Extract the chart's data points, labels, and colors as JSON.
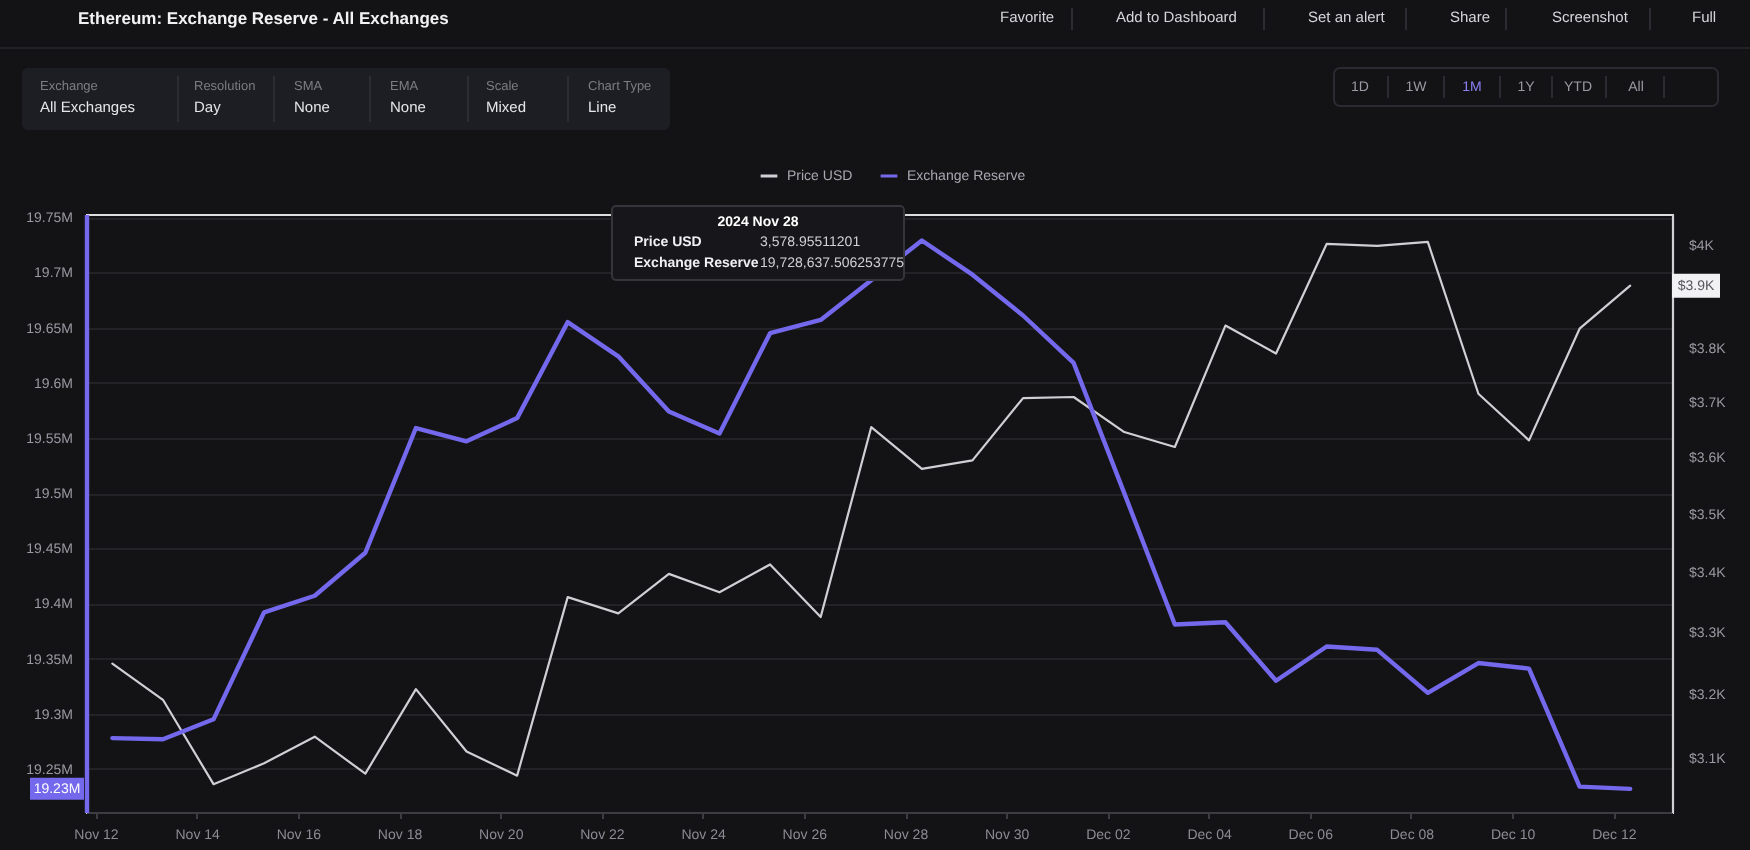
{
  "chart_data": {
    "type": "line",
    "title": "Ethereum: Exchange Reserve - All Exchanges",
    "x": [
      "2024-11-12T08:00",
      "2024-11-13T08:00",
      "2024-11-14T08:00",
      "2024-11-15T08:00",
      "2024-11-16T08:00",
      "2024-11-17T08:00",
      "2024-11-18T08:00",
      "2024-11-19T08:00",
      "2024-11-20T08:00",
      "2024-11-21T08:00",
      "2024-11-22T08:00",
      "2024-11-23T08:00",
      "2024-11-24T08:00",
      "2024-11-25T08:00",
      "2024-11-26T08:00",
      "2024-11-27T08:00",
      "2024-11-28T08:00",
      "2024-11-29T08:00",
      "2024-11-30T08:00",
      "2024-12-01T08:00",
      "2024-12-02T08:00",
      "2024-12-03T08:00",
      "2024-12-04T08:00",
      "2024-12-05T08:00",
      "2024-12-06T08:00",
      "2024-12-07T08:00",
      "2024-12-08T08:00",
      "2024-12-09T08:00",
      "2024-12-10T08:00",
      "2024-12-11T08:00",
      "2024-12-12T08:00"
    ],
    "series": [
      {
        "name": "Price USD",
        "color": "#cfcfd4",
        "axis": "y2",
        "values": [
          3249,
          3191,
          3060,
          3092,
          3133,
          3076,
          3208,
          3110,
          3073,
          3358,
          3331,
          3397,
          3366,
          3413,
          3325,
          3654,
          3578.95511201,
          3594,
          3707,
          3709,
          3645,
          3618,
          3843,
          3790,
          4002,
          3998,
          4006,
          3715,
          3630,
          3837,
          3920
        ]
      },
      {
        "name": "Exchange Reserve",
        "color": "#7468ec",
        "values": [
          19.278,
          19.277,
          19.295,
          19.392,
          19.407,
          19.446,
          19.559,
          19.547,
          19.568,
          19.655,
          19.624,
          19.574,
          19.554,
          19.645,
          19.657,
          null,
          19.729,
          19.698,
          19.661,
          19.618,
          19.5,
          19.381,
          19.383,
          19.33,
          19.361,
          19.358,
          19.319,
          19.346,
          19.341,
          19.234,
          19.232
        ]
      }
    ],
    "xlim": [
      "2024-11-11T19:30",
      "2024-12-13T03:50"
    ],
    "xticks": [
      {
        "value": "2024-11-12",
        "label": "Nov 12"
      },
      {
        "value": "2024-11-14",
        "label": "Nov 14"
      },
      {
        "value": "2024-11-16",
        "label": "Nov 16"
      },
      {
        "value": "2024-11-18",
        "label": "Nov 18"
      },
      {
        "value": "2024-11-20",
        "label": "Nov 20"
      },
      {
        "value": "2024-11-22",
        "label": "Nov 22"
      },
      {
        "value": "2024-11-24",
        "label": "Nov 24"
      },
      {
        "value": "2024-11-26",
        "label": "Nov 26"
      },
      {
        "value": "2024-11-28",
        "label": "Nov 28"
      },
      {
        "value": "2024-11-30",
        "label": "Nov 30"
      },
      {
        "value": "2024-12-02",
        "label": "Dec 02"
      },
      {
        "value": "2024-12-04",
        "label": "Dec 04"
      },
      {
        "value": "2024-12-06",
        "label": "Dec 06"
      },
      {
        "value": "2024-12-08",
        "label": "Dec 08"
      },
      {
        "value": "2024-12-10",
        "label": "Dec 10"
      },
      {
        "value": "2024-12-12",
        "label": "Dec 12"
      }
    ],
    "ylim": [
      19.211,
      19.753
    ],
    "yticks": [
      {
        "value": 19.25,
        "label": "19.25M"
      },
      {
        "value": 19.3,
        "label": "19.3M"
      },
      {
        "value": 19.35,
        "label": "19.35M"
      },
      {
        "value": 19.4,
        "label": "19.4M"
      },
      {
        "value": 19.45,
        "label": "19.45M"
      },
      {
        "value": 19.5,
        "label": "19.5M"
      },
      {
        "value": 19.55,
        "label": "19.55M"
      },
      {
        "value": 19.6,
        "label": "19.6M"
      },
      {
        "value": 19.65,
        "label": "19.65M"
      },
      {
        "value": 19.7,
        "label": "19.7M"
      },
      {
        "value": 19.75,
        "label": "19.75M"
      }
    ],
    "y2lim": [
      3018,
      4062
    ],
    "y2ticks": [
      {
        "value": 3100,
        "label": "$3.1K"
      },
      {
        "value": 3200,
        "label": "$3.2K"
      },
      {
        "value": 3300,
        "label": "$3.3K"
      },
      {
        "value": 3400,
        "label": "$3.4K"
      },
      {
        "value": 3500,
        "label": "$3.5K"
      },
      {
        "value": 3600,
        "label": "$3.6K"
      },
      {
        "value": 3700,
        "label": "$3.7K"
      },
      {
        "value": 3800,
        "label": "$3.8K"
      },
      {
        "value": 4000,
        "label": "$4K"
      }
    ],
    "log": "y2",
    "grid": "y",
    "legend": "top",
    "annotations": [
      "Favorite",
      "Add to Dashboard",
      "Set an alert",
      "Share",
      "Screenshot",
      "Full",
      "Exchange",
      "All Exchanges",
      "Resolution",
      "Day",
      "SMA",
      "None",
      "EMA",
      "None",
      "Scale",
      "Mixed",
      "Chart Type",
      "Line",
      "1D",
      "1W",
      "1M",
      "1Y",
      "YTD",
      "All",
      "2024 Nov 28",
      "Price USD",
      "3,578.95511201",
      "Exchange Reserve",
      "19,728,637.506253775",
      "19.23M",
      "$3.9K"
    ]
  }
}
